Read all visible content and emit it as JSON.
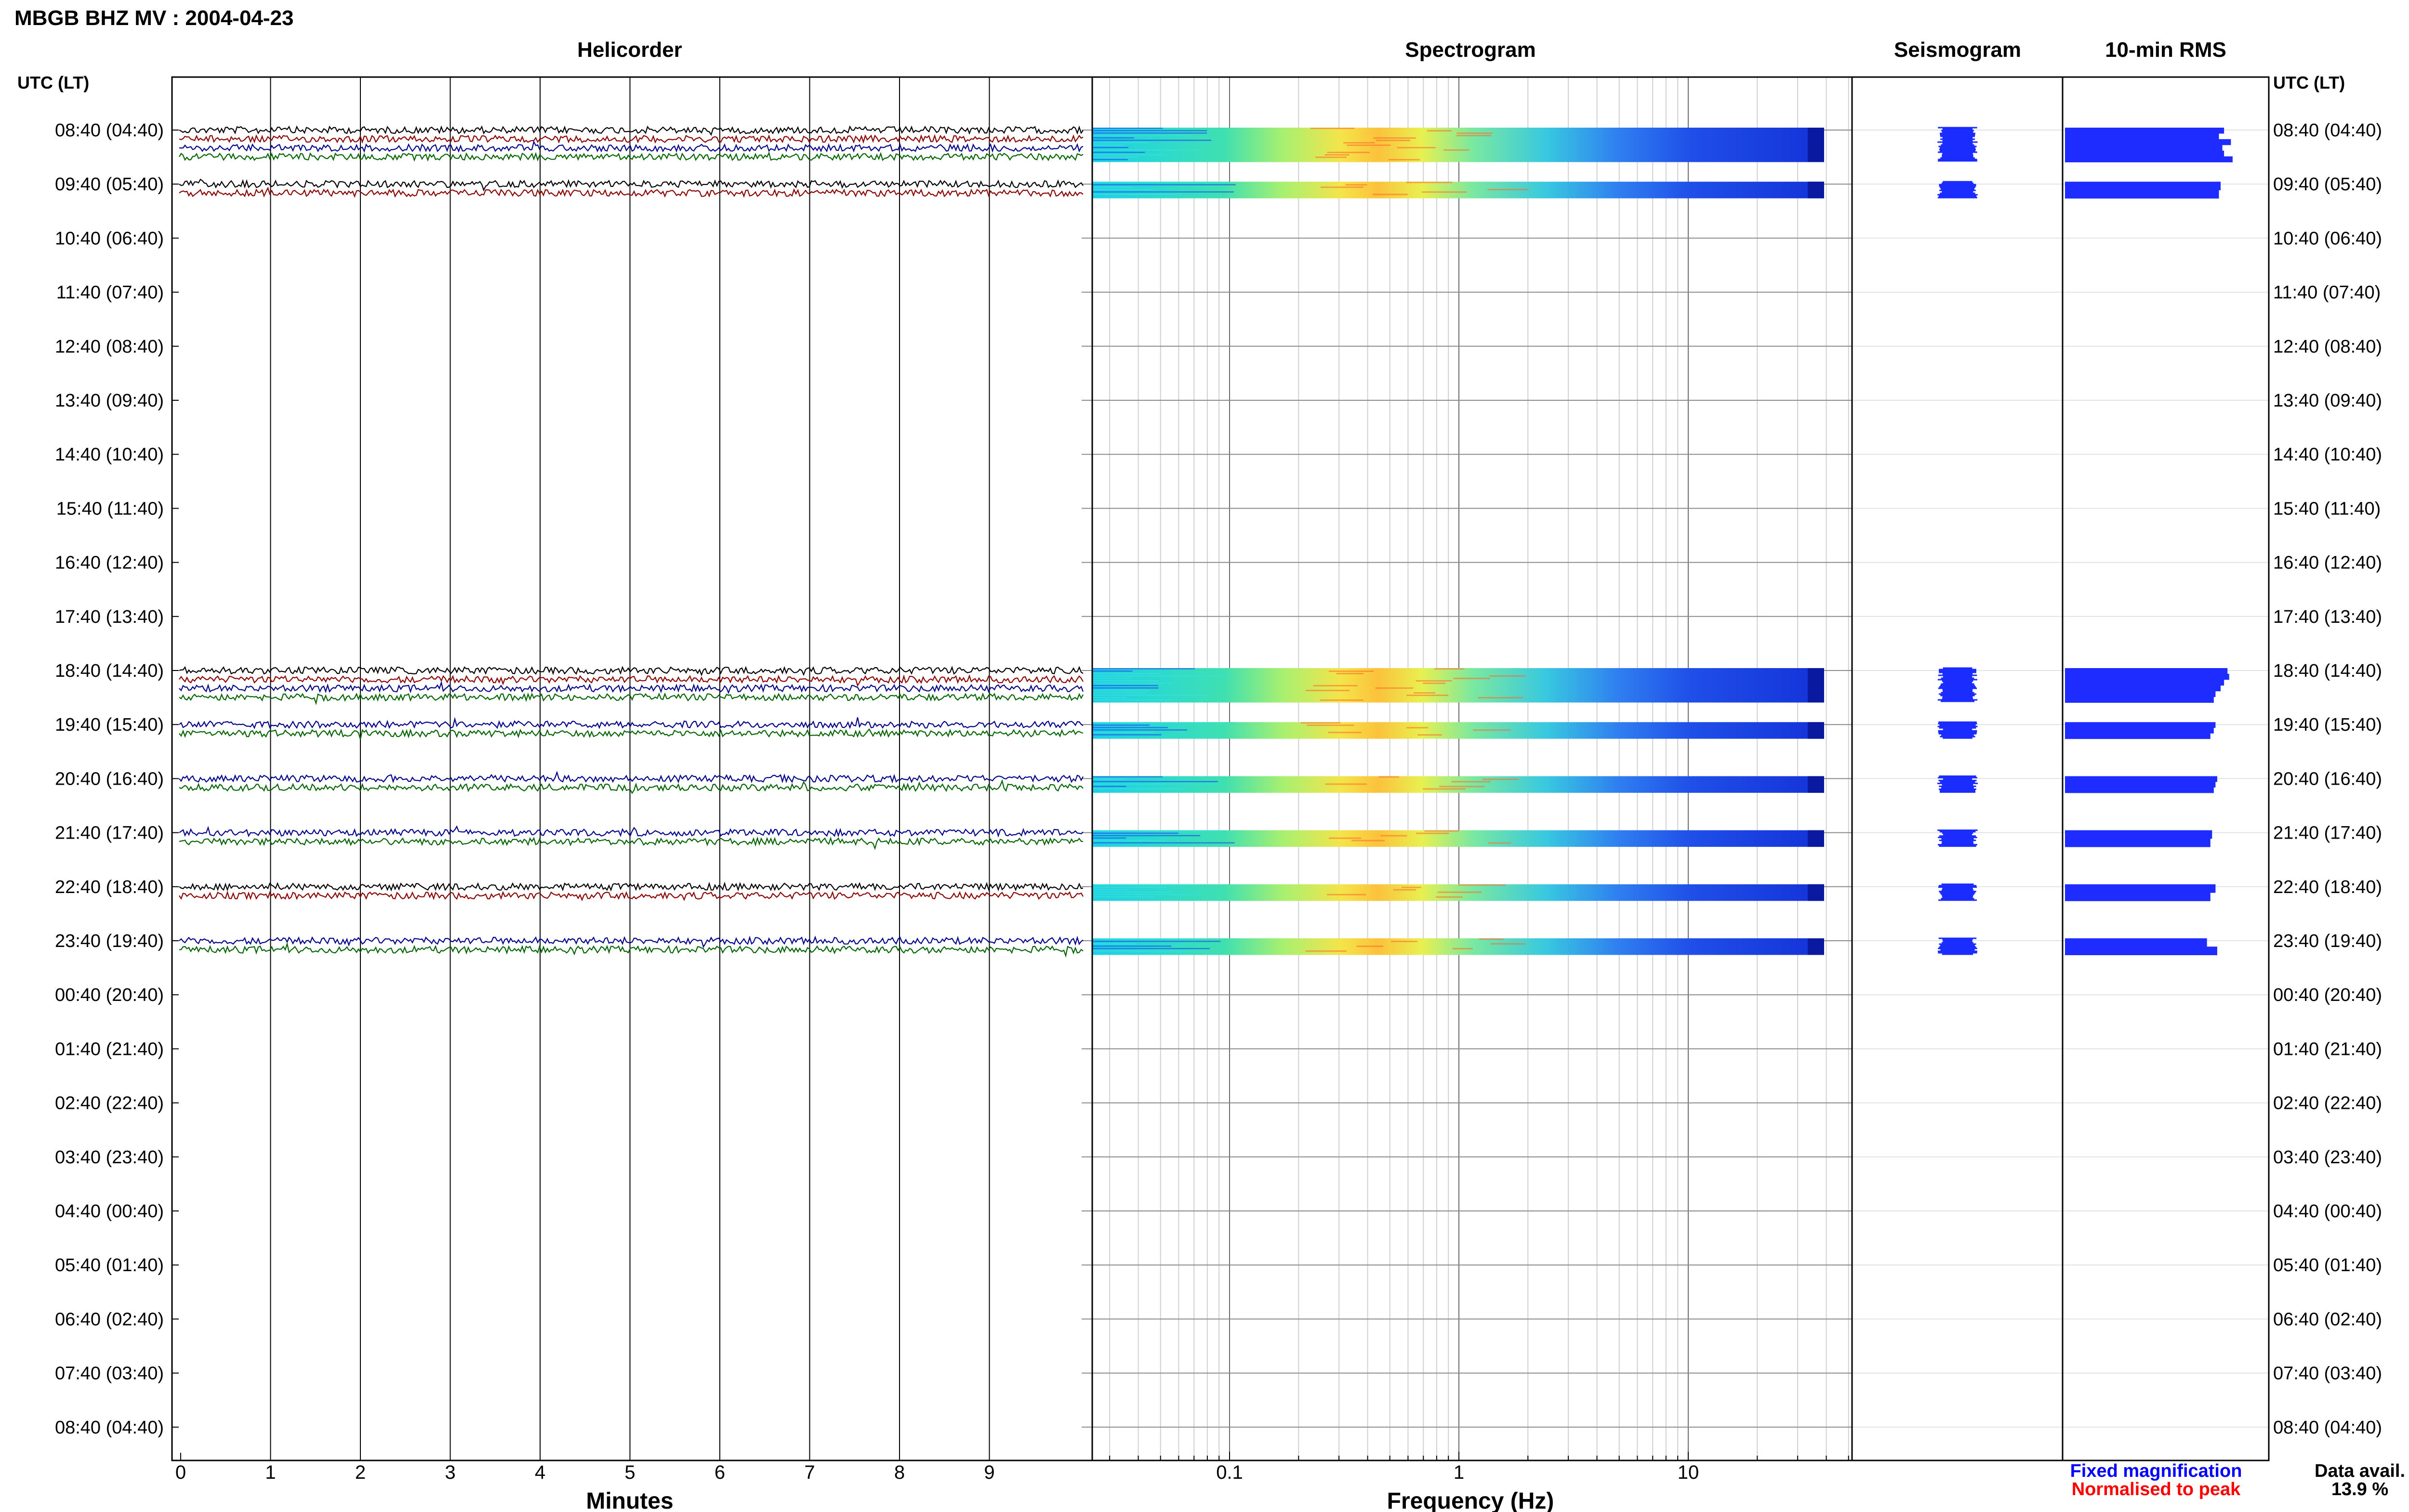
{
  "title": "MBGB BHZ MV : 2004-04-23",
  "panels": {
    "helicorder": "Helicorder",
    "spectrogram": "Spectrogram",
    "seismogram": "Seismogram",
    "rms": "10-min RMS"
  },
  "axis": {
    "time_header": "UTC (LT)",
    "xlabel_helicorder": "Minutes",
    "xlabel_spectrogram": "Frequency (Hz)"
  },
  "legend": {
    "fixed": "Fixed magnification",
    "fixed_color": "#0000ff",
    "normalised": "Normalised to peak",
    "normalised_color": "#ff0000"
  },
  "availability": {
    "label": "Data avail.",
    "value": "13.9 %"
  },
  "chart_data": {
    "type": "helicorder",
    "row_labels": [
      "08:40 (04:40)",
      "09:40 (05:40)",
      "10:40 (06:40)",
      "11:40 (07:40)",
      "12:40 (08:40)",
      "13:40 (09:40)",
      "14:40 (10:40)",
      "15:40 (11:40)",
      "16:40 (12:40)",
      "17:40 (13:40)",
      "18:40 (14:40)",
      "19:40 (15:40)",
      "20:40 (16:40)",
      "21:40 (17:40)",
      "22:40 (18:40)",
      "23:40 (19:40)",
      "00:40 (20:40)",
      "01:40 (21:40)",
      "02:40 (22:40)",
      "03:40 (23:40)",
      "04:40 (00:40)",
      "05:40 (01:40)",
      "06:40 (02:40)",
      "07:40 (03:40)",
      "08:40 (04:40)"
    ],
    "minute_ticks": [
      "0",
      "1",
      "2",
      "3",
      "4",
      "5",
      "6",
      "7",
      "8",
      "9"
    ],
    "frequency_ticks": [
      {
        "label": "0.1",
        "hz": 0.1
      },
      {
        "label": "1",
        "hz": 1
      },
      {
        "label": "10",
        "hz": 10
      }
    ],
    "frequency_range_hz": [
      0.025,
      50
    ],
    "trace_colors": [
      "#000000",
      "#8b0000",
      "#00008b",
      "#006400"
    ],
    "data_hours": [
      {
        "row": 0,
        "traces": [
          0,
          1,
          2,
          3
        ],
        "rms": [
          0.93,
          0.9,
          0.97,
          0.92,
          0.93,
          0.98
        ]
      },
      {
        "row": 1,
        "traces": [
          0,
          1
        ],
        "rms": [
          0.91,
          0.9
        ]
      },
      {
        "row": 10,
        "traces": [
          0,
          1,
          2,
          3
        ],
        "rms": [
          0.95,
          0.96,
          0.93,
          0.91,
          0.88,
          0.87
        ]
      },
      {
        "row": 11,
        "traces": [
          2,
          3
        ],
        "rms": [
          0.88,
          0.87,
          0.85
        ]
      },
      {
        "row": 12,
        "traces": [
          2,
          3
        ],
        "rms": [
          0.89,
          0.88,
          0.87
        ]
      },
      {
        "row": 13,
        "traces": [
          2,
          3
        ],
        "rms": [
          0.86,
          0.85
        ]
      },
      {
        "row": 14,
        "traces": [
          0,
          1
        ],
        "rms": [
          0.88,
          0.85
        ]
      },
      {
        "row": 15,
        "traces": [
          2,
          3
        ],
        "rms": [
          0.83,
          0.89
        ]
      }
    ],
    "data_availability_percent": 13.9
  }
}
